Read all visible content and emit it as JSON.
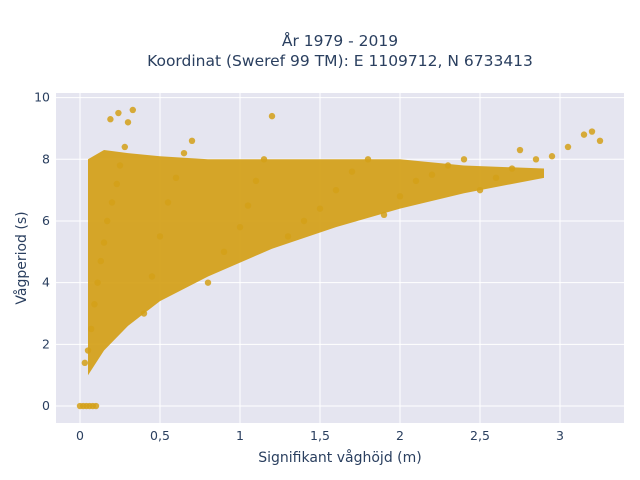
{
  "chart_data": {
    "type": "scatter",
    "title_lines": [
      "År 1979 - 2019",
      "Koordinat (Sweref 99 TM): E 1109712, N 6733413"
    ],
    "xlabel": "Signifikant våghöjd (m)",
    "ylabel": "Vågperiod (s)",
    "xlim": [
      -0.15,
      3.4
    ],
    "ylim": [
      -0.55,
      10.15
    ],
    "x_ticks": [
      0,
      0.5,
      1,
      1.5,
      2,
      2.5,
      3
    ],
    "x_tick_labels": [
      "0",
      "0,5",
      "1",
      "1,5",
      "2",
      "2,5",
      "3"
    ],
    "y_ticks": [
      0,
      2,
      4,
      6,
      8,
      10
    ],
    "y_tick_labels": [
      "0",
      "2",
      "4",
      "6",
      "8",
      "10"
    ],
    "grid": true,
    "marker_color": "#D4A017",
    "background_color": "#E5E5F0",
    "series": [
      {
        "points": [
          [
            0.0,
            0.0
          ],
          [
            0.02,
            0.0
          ],
          [
            0.04,
            0.0
          ],
          [
            0.06,
            0.0
          ],
          [
            0.08,
            0.0
          ],
          [
            0.1,
            0.0
          ],
          [
            0.03,
            1.4
          ],
          [
            0.05,
            1.8
          ],
          [
            0.07,
            2.5
          ],
          [
            0.09,
            3.3
          ],
          [
            0.11,
            4.0
          ],
          [
            0.13,
            4.7
          ],
          [
            0.15,
            5.3
          ],
          [
            0.17,
            6.0
          ],
          [
            0.2,
            6.6
          ],
          [
            0.23,
            7.2
          ],
          [
            0.25,
            7.8
          ],
          [
            0.28,
            8.4
          ],
          [
            0.3,
            9.2
          ],
          [
            0.33,
            9.6
          ],
          [
            0.24,
            9.5
          ],
          [
            0.19,
            9.3
          ],
          [
            0.4,
            3.0
          ],
          [
            0.45,
            4.2
          ],
          [
            0.5,
            5.5
          ],
          [
            0.55,
            6.6
          ],
          [
            0.6,
            7.4
          ],
          [
            0.65,
            8.2
          ],
          [
            0.7,
            8.6
          ],
          [
            0.8,
            4.0
          ],
          [
            0.9,
            5.0
          ],
          [
            1.0,
            5.8
          ],
          [
            1.05,
            6.5
          ],
          [
            1.1,
            7.3
          ],
          [
            1.15,
            8.0
          ],
          [
            1.2,
            9.4
          ],
          [
            1.3,
            5.5
          ],
          [
            1.4,
            6.0
          ],
          [
            1.5,
            6.4
          ],
          [
            1.6,
            7.0
          ],
          [
            1.7,
            7.6
          ],
          [
            1.8,
            8.0
          ],
          [
            1.9,
            6.2
          ],
          [
            2.0,
            6.8
          ],
          [
            2.1,
            7.3
          ],
          [
            2.2,
            7.5
          ],
          [
            2.3,
            7.8
          ],
          [
            2.4,
            8.0
          ],
          [
            2.5,
            7.0
          ],
          [
            2.6,
            7.4
          ],
          [
            2.7,
            7.7
          ],
          [
            2.75,
            8.3
          ],
          [
            2.85,
            8.0
          ],
          [
            2.95,
            8.1
          ],
          [
            3.05,
            8.4
          ],
          [
            3.15,
            8.8
          ],
          [
            3.2,
            8.9
          ],
          [
            3.25,
            8.6
          ]
        ],
        "density_band": {
          "x_start": 0.05,
          "x_end": 2.9,
          "lower": [
            [
              0.05,
              1.0
            ],
            [
              0.15,
              1.8
            ],
            [
              0.3,
              2.6
            ],
            [
              0.5,
              3.4
            ],
            [
              0.8,
              4.2
            ],
            [
              1.2,
              5.1
            ],
            [
              1.6,
              5.8
            ],
            [
              2.0,
              6.4
            ],
            [
              2.4,
              6.9
            ],
            [
              2.9,
              7.4
            ]
          ],
          "upper": [
            [
              0.05,
              8.0
            ],
            [
              0.15,
              8.3
            ],
            [
              0.3,
              8.2
            ],
            [
              0.5,
              8.1
            ],
            [
              0.8,
              8.0
            ],
            [
              1.2,
              8.0
            ],
            [
              1.6,
              8.0
            ],
            [
              2.0,
              8.0
            ],
            [
              2.4,
              7.8
            ],
            [
              2.9,
              7.7
            ]
          ]
        }
      }
    ]
  }
}
